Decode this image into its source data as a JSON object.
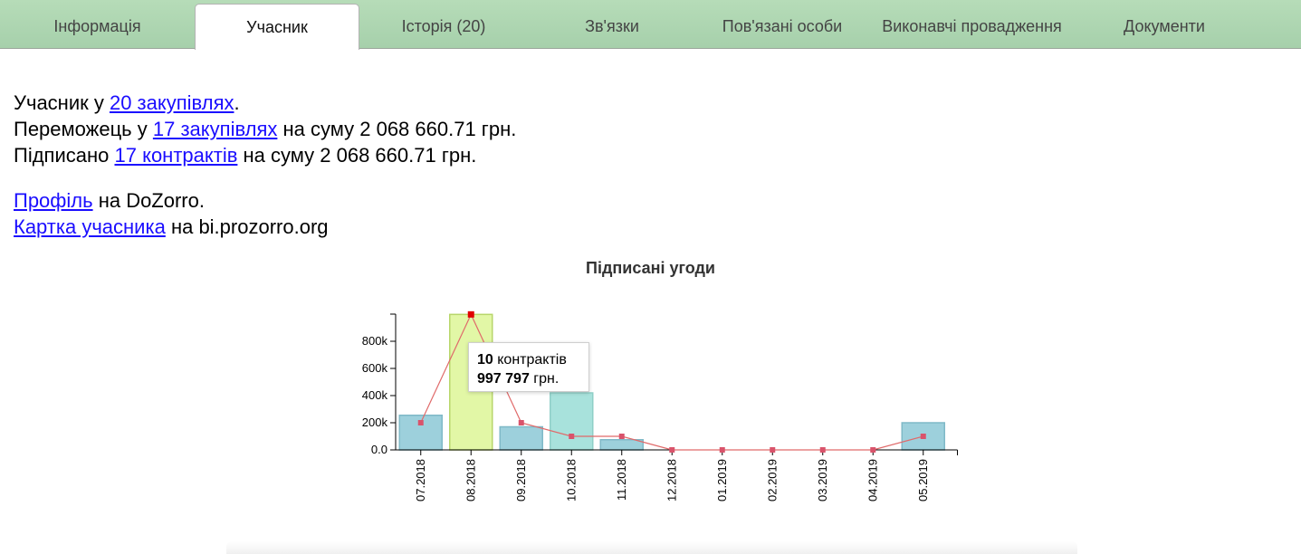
{
  "tabs": [
    {
      "label": "Інформація",
      "active": false
    },
    {
      "label": "Учасник",
      "active": true
    },
    {
      "label": "Історія (20)",
      "active": false
    },
    {
      "label": "Зв'язки",
      "active": false
    },
    {
      "label": "Пов'язані особи",
      "active": false
    },
    {
      "label": "Виконавчі провадження",
      "active": false
    },
    {
      "label": "Документи",
      "active": false
    }
  ],
  "summary": {
    "line1": {
      "prefix": "Учасник у ",
      "link": "20 закупівлях",
      "suffix": "."
    },
    "line2": {
      "prefix": "Переможець у ",
      "link": "17 закупівлях",
      "suffix": " на суму 2 068 660.71 грн."
    },
    "line3": {
      "prefix": "Підписано ",
      "link": "17 контрактів",
      "suffix": " на суму 2 068 660.71 грн."
    }
  },
  "links": {
    "profile": {
      "link": "Профіль",
      "suffix": " на DoZorro."
    },
    "card": {
      "link": "Картка учасника",
      "suffix": " на bi.prozorro.org"
    }
  },
  "tooltip": {
    "count": "10",
    "count_label": " контрактів",
    "amount": "997 797",
    "amount_label": " грн."
  },
  "colors": {
    "bar": "#9dd0dc",
    "bar_highlight": "#e2f7a6",
    "bar_alt": "#a8e2dc",
    "line": "#e06a6a",
    "point": "#d9536b",
    "point_active": "#e00000"
  },
  "chart_data": {
    "type": "bar",
    "title": "Підписані угоди",
    "categories": [
      "07.2018",
      "08.2018",
      "09.2018",
      "10.2018",
      "11.2018",
      "12.2018",
      "01.2019",
      "02.2019",
      "03.2019",
      "04.2019",
      "05.2019"
    ],
    "series": [
      {
        "values": [
          255000,
          997797,
          170000,
          420000,
          75000,
          0,
          0,
          0,
          0,
          0,
          200000
        ]
      },
      {
        "values": [
          200000,
          997797,
          200000,
          100000,
          100000,
          0,
          0,
          0,
          0,
          0,
          100000
        ]
      }
    ],
    "yticks": [
      "0.0",
      "200k",
      "400k",
      "600k",
      "800k"
    ],
    "ylim": [
      0,
      1000000
    ],
    "highlighted_category": "08.2018",
    "grid": false,
    "legend": "none"
  }
}
